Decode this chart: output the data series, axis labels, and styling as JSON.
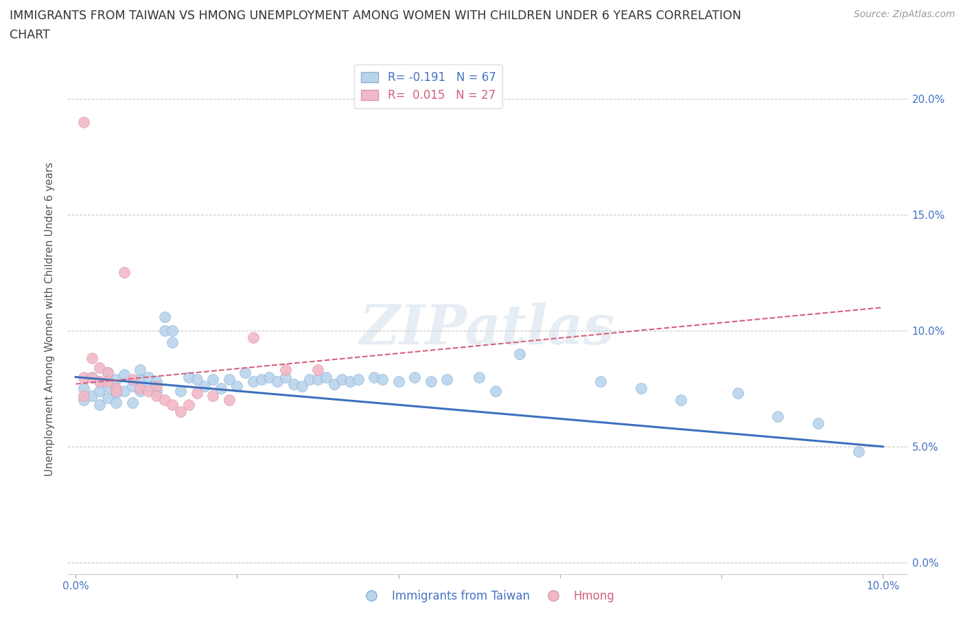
{
  "title_line1": "IMMIGRANTS FROM TAIWAN VS HMONG UNEMPLOYMENT AMONG WOMEN WITH CHILDREN UNDER 6 YEARS CORRELATION",
  "title_line2": "CHART",
  "source": "Source: ZipAtlas.com",
  "ylabel": "Unemployment Among Women with Children Under 6 years",
  "xlim": [
    -0.001,
    0.103
  ],
  "ylim": [
    -0.005,
    0.215
  ],
  "xticks": [
    0.0,
    0.02,
    0.04,
    0.06,
    0.08,
    0.1
  ],
  "yticks": [
    0.0,
    0.05,
    0.1,
    0.15,
    0.2
  ],
  "ytick_labels": [
    "0.0%",
    "5.0%",
    "10.0%",
    "15.0%",
    "20.0%"
  ],
  "xtick_labels": [
    "0.0%",
    "",
    "",
    "",
    "",
    "10.0%"
  ],
  "taiwan_R": -0.191,
  "taiwan_N": 67,
  "hmong_R": 0.015,
  "hmong_N": 27,
  "taiwan_color": "#b8d4eb",
  "taiwan_line_color": "#3d6fbd",
  "hmong_color": "#f2b8c6",
  "hmong_line_color": "#d45f7a",
  "background_color": "#ffffff",
  "watermark": "ZIPatlas",
  "taiwan_x": [
    0.001,
    0.001,
    0.002,
    0.002,
    0.003,
    0.003,
    0.003,
    0.004,
    0.004,
    0.004,
    0.005,
    0.005,
    0.005,
    0.006,
    0.006,
    0.007,
    0.007,
    0.008,
    0.008,
    0.008,
    0.009,
    0.009,
    0.01,
    0.01,
    0.011,
    0.011,
    0.012,
    0.012,
    0.013,
    0.014,
    0.015,
    0.016,
    0.017,
    0.018,
    0.019,
    0.02,
    0.021,
    0.022,
    0.023,
    0.024,
    0.025,
    0.026,
    0.027,
    0.028,
    0.029,
    0.03,
    0.031,
    0.032,
    0.033,
    0.034,
    0.035,
    0.037,
    0.038,
    0.04,
    0.042,
    0.044,
    0.046,
    0.05,
    0.052,
    0.055,
    0.065,
    0.07,
    0.075,
    0.082,
    0.087,
    0.092,
    0.097
  ],
  "taiwan_y": [
    0.075,
    0.07,
    0.08,
    0.072,
    0.078,
    0.068,
    0.074,
    0.076,
    0.071,
    0.082,
    0.073,
    0.069,
    0.079,
    0.074,
    0.081,
    0.076,
    0.069,
    0.074,
    0.079,
    0.083,
    0.076,
    0.08,
    0.074,
    0.078,
    0.1,
    0.106,
    0.095,
    0.1,
    0.074,
    0.08,
    0.079,
    0.076,
    0.079,
    0.075,
    0.079,
    0.076,
    0.082,
    0.078,
    0.079,
    0.08,
    0.078,
    0.08,
    0.077,
    0.076,
    0.079,
    0.079,
    0.08,
    0.077,
    0.079,
    0.078,
    0.079,
    0.08,
    0.079,
    0.078,
    0.08,
    0.078,
    0.079,
    0.08,
    0.074,
    0.09,
    0.078,
    0.075,
    0.07,
    0.073,
    0.063,
    0.06,
    0.048
  ],
  "hmong_x": [
    0.001,
    0.001,
    0.002,
    0.002,
    0.003,
    0.003,
    0.004,
    0.004,
    0.005,
    0.005,
    0.006,
    0.007,
    0.008,
    0.009,
    0.01,
    0.01,
    0.011,
    0.012,
    0.013,
    0.014,
    0.015,
    0.017,
    0.019,
    0.022,
    0.026,
    0.03,
    0.001
  ],
  "hmong_y": [
    0.08,
    0.072,
    0.08,
    0.088,
    0.078,
    0.084,
    0.082,
    0.078,
    0.075,
    0.074,
    0.125,
    0.079,
    0.075,
    0.074,
    0.076,
    0.072,
    0.07,
    0.068,
    0.065,
    0.068,
    0.073,
    0.072,
    0.07,
    0.097,
    0.083,
    0.083,
    0.19
  ],
  "taiwan_trend_x0": 0.0,
  "taiwan_trend_y0": 0.08,
  "taiwan_trend_x1": 0.1,
  "taiwan_trend_y1": 0.05,
  "hmong_trend_x0": 0.0,
  "hmong_trend_y0": 0.077,
  "hmong_trend_x1": 0.1,
  "hmong_trend_y1": 0.11
}
